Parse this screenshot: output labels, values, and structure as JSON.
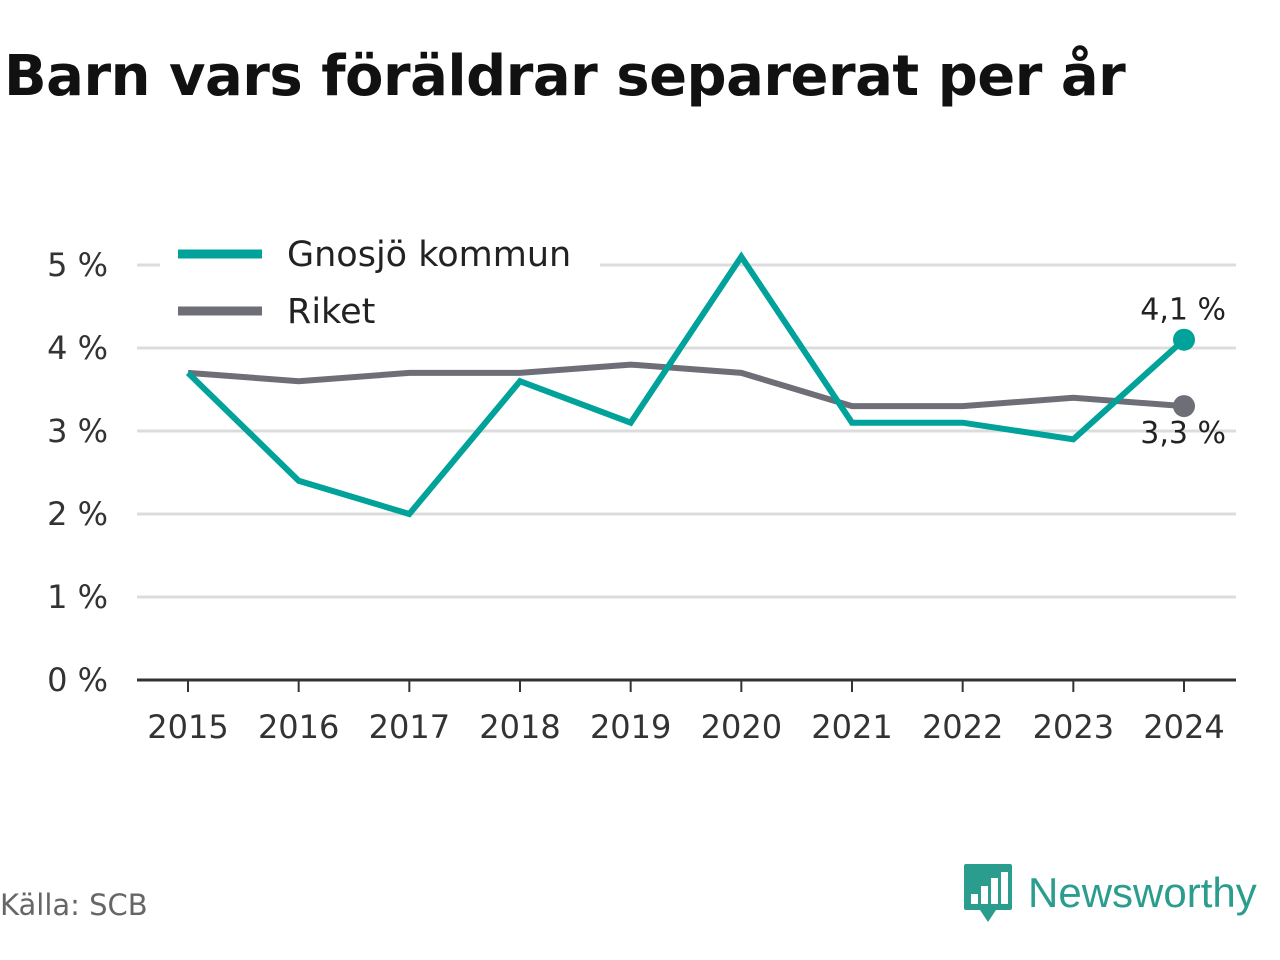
{
  "title": "Barn vars föräldrar separerat per år",
  "source": "Källa: SCB",
  "brand": {
    "name": "Newsworthy",
    "icon": "newsworthy-logo-icon",
    "color": "#2a9d8f"
  },
  "chart_data": {
    "type": "line",
    "title": "Barn vars föräldrar separerat per år",
    "x": [
      "2015",
      "2016",
      "2017",
      "2018",
      "2019",
      "2020",
      "2021",
      "2022",
      "2023",
      "2024"
    ],
    "series": [
      {
        "name": "Gnosjö kommun",
        "color": "#00a29a",
        "values": [
          3.7,
          2.4,
          2.0,
          3.6,
          3.1,
          5.1,
          3.1,
          3.1,
          2.9,
          4.1
        ]
      },
      {
        "name": "Riket",
        "color": "#6e6e77",
        "values": [
          3.7,
          3.6,
          3.7,
          3.7,
          3.8,
          3.7,
          3.3,
          3.3,
          3.4,
          3.3
        ]
      }
    ],
    "y_ticks": [
      "0 %",
      "1 %",
      "2 %",
      "3 %",
      "4 %",
      "5 %"
    ],
    "end_labels": [
      "4,1 %",
      "3,3 %"
    ],
    "ylim": [
      0,
      5
    ],
    "grid": true,
    "legend_position": "top-left"
  }
}
